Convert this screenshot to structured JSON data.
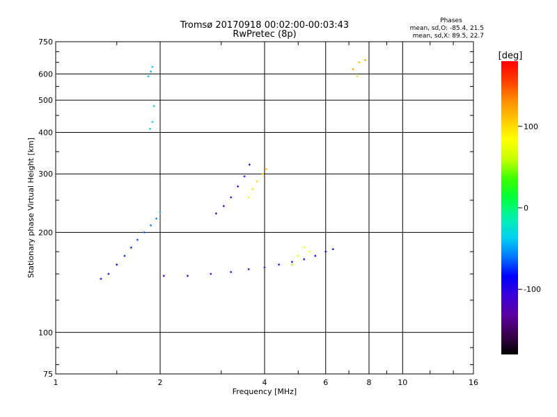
{
  "chart_data": {
    "type": "scatter",
    "title": "Tromsø 20170918 00:02:00-00:03:43",
    "subtitle": "RwPretec (8p)",
    "xlabel": "Frequency [MHz]",
    "ylabel": "Stationary phase Virtual Height [km]",
    "x_scale": "log",
    "y_scale": "log",
    "xlim": [
      1,
      16
    ],
    "ylim": [
      75,
      750
    ],
    "x_ticks": [
      {
        "value": 1,
        "label": "1"
      },
      {
        "value": 2,
        "label": "2"
      },
      {
        "value": 4,
        "label": "4"
      },
      {
        "value": 6,
        "label": "6"
      },
      {
        "value": 8,
        "label": "8"
      },
      {
        "value": 10,
        "label": "10"
      },
      {
        "value": 16,
        "label": "16"
      }
    ],
    "y_ticks": [
      {
        "value": 75,
        "label": "75"
      },
      {
        "value": 100,
        "label": "100"
      },
      {
        "value": 200,
        "label": "200"
      },
      {
        "value": 300,
        "label": "300"
      },
      {
        "value": 400,
        "label": "400"
      },
      {
        "value": 500,
        "label": "500"
      },
      {
        "value": 600,
        "label": "600"
      },
      {
        "value": 750,
        "label": "750"
      }
    ],
    "grid": true,
    "stats": {
      "heading": "Phases",
      "line_o": "mean, sd,O: -85.4, 21.5",
      "line_x": "mean, sd,X:  89.5, 22.7"
    },
    "colorbar": {
      "label": "[deg]",
      "range": [
        -180,
        180
      ],
      "ticks": [
        {
          "value": 100,
          "label": "100"
        },
        {
          "value": 0,
          "label": "0"
        },
        {
          "value": -100,
          "label": "-100"
        }
      ],
      "colors": [
        "#000000",
        "#3c0050",
        "#5a00a0",
        "#3c00d8",
        "#0000ff",
        "#0078ff",
        "#00d2f0",
        "#00f0aa",
        "#00ff3c",
        "#3cff00",
        "#c8ff00",
        "#ffff00",
        "#ffc800",
        "#ff8c00",
        "#ff3c00",
        "#ff0000"
      ]
    },
    "series": [
      {
        "points": [
          [
            1.35,
            145,
            -95
          ],
          [
            1.42,
            150,
            -90
          ],
          [
            1.5,
            160,
            -85
          ],
          [
            1.58,
            170,
            -80
          ],
          [
            1.65,
            180,
            -75
          ],
          [
            1.72,
            190,
            -70
          ],
          [
            1.8,
            200,
            -65
          ],
          [
            1.88,
            210,
            -60
          ],
          [
            1.95,
            220,
            -55
          ],
          [
            2.0,
            230,
            -50
          ]
        ]
      },
      {
        "points": [
          [
            2.05,
            148,
            -115
          ],
          [
            2.4,
            148,
            -112
          ],
          [
            2.8,
            150,
            -110
          ],
          [
            3.2,
            152,
            -108
          ],
          [
            3.6,
            155,
            -105
          ],
          [
            4.0,
            157,
            -102
          ],
          [
            4.4,
            160,
            -98
          ],
          [
            4.8,
            163,
            -95
          ],
          [
            5.2,
            166,
            -92
          ],
          [
            5.6,
            170,
            -88
          ],
          [
            6.0,
            175,
            -85
          ],
          [
            6.3,
            178,
            -82
          ]
        ]
      },
      {
        "points": [
          [
            2.9,
            228,
            -115
          ],
          [
            3.05,
            240,
            -112
          ],
          [
            3.2,
            255,
            -108
          ],
          [
            3.35,
            275,
            -104
          ],
          [
            3.5,
            295,
            -100
          ],
          [
            3.62,
            320,
            -96
          ]
        ]
      },
      {
        "points": [
          [
            3.6,
            255,
            90
          ],
          [
            3.7,
            270,
            95
          ],
          [
            3.8,
            285,
            100
          ],
          [
            3.95,
            300,
            105
          ],
          [
            4.05,
            310,
            110
          ]
        ]
      },
      {
        "points": [
          [
            4.8,
            160,
            60
          ],
          [
            5.0,
            170,
            70
          ],
          [
            5.2,
            180,
            80
          ],
          [
            5.4,
            175,
            75
          ]
        ]
      },
      {
        "points": [
          [
            1.85,
            590,
            -40
          ],
          [
            1.88,
            610,
            -45
          ],
          [
            1.9,
            630,
            -42
          ],
          [
            1.87,
            410,
            -30
          ],
          [
            1.9,
            430,
            -35
          ],
          [
            1.92,
            480,
            -38
          ]
        ]
      },
      {
        "points": [
          [
            7.2,
            620,
            120
          ],
          [
            7.5,
            650,
            110
          ],
          [
            7.8,
            660,
            115
          ],
          [
            7.4,
            590,
            105
          ]
        ]
      }
    ]
  }
}
